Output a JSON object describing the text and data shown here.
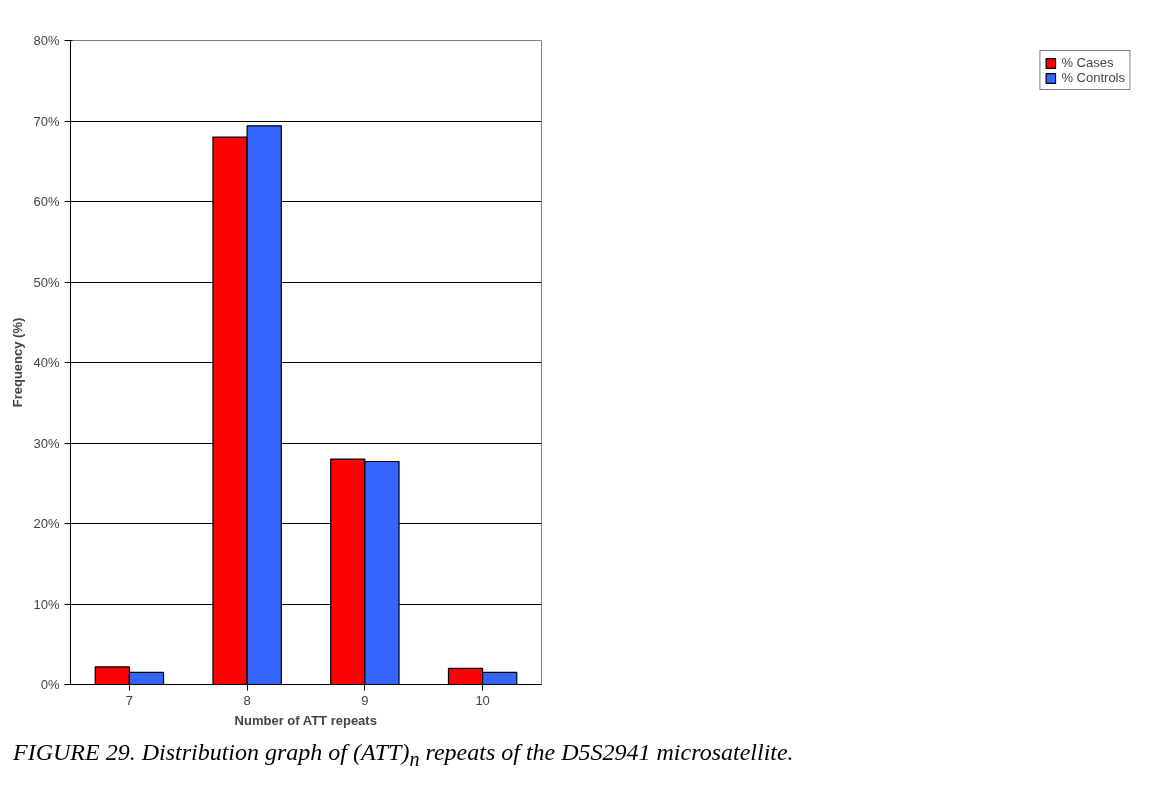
{
  "chart_data": {
    "type": "bar",
    "categories": [
      "7",
      "8",
      "9",
      "10"
    ],
    "series": [
      {
        "name": "% Cases",
        "color": "#ff0000",
        "values": [
          2.2,
          68.0,
          28.0,
          2.0
        ]
      },
      {
        "name": "% Controls",
        "color": "#3366ff",
        "values": [
          1.5,
          69.4,
          27.7,
          1.5
        ]
      }
    ],
    "xlabel": "Number of ATT repeats",
    "ylabel": "Frequency (%)",
    "ylim": [
      0,
      80
    ],
    "yticks": [
      {
        "value": 0,
        "label": "0%"
      },
      {
        "value": 10,
        "label": "10%"
      },
      {
        "value": 20,
        "label": "20%"
      },
      {
        "value": 30,
        "label": "30%"
      },
      {
        "value": 40,
        "label": "40%"
      },
      {
        "value": 50,
        "label": "50%"
      },
      {
        "value": 60,
        "label": "60%"
      },
      {
        "value": 70,
        "label": "70%"
      },
      {
        "value": 80,
        "label": "80%"
      }
    ],
    "grid": "y",
    "legend": "right",
    "annotations": [
      "FIGURE 29. Distribution graph of (ATT)$_{n}$ repeats of the D5S2941 microsatellite."
    ]
  }
}
